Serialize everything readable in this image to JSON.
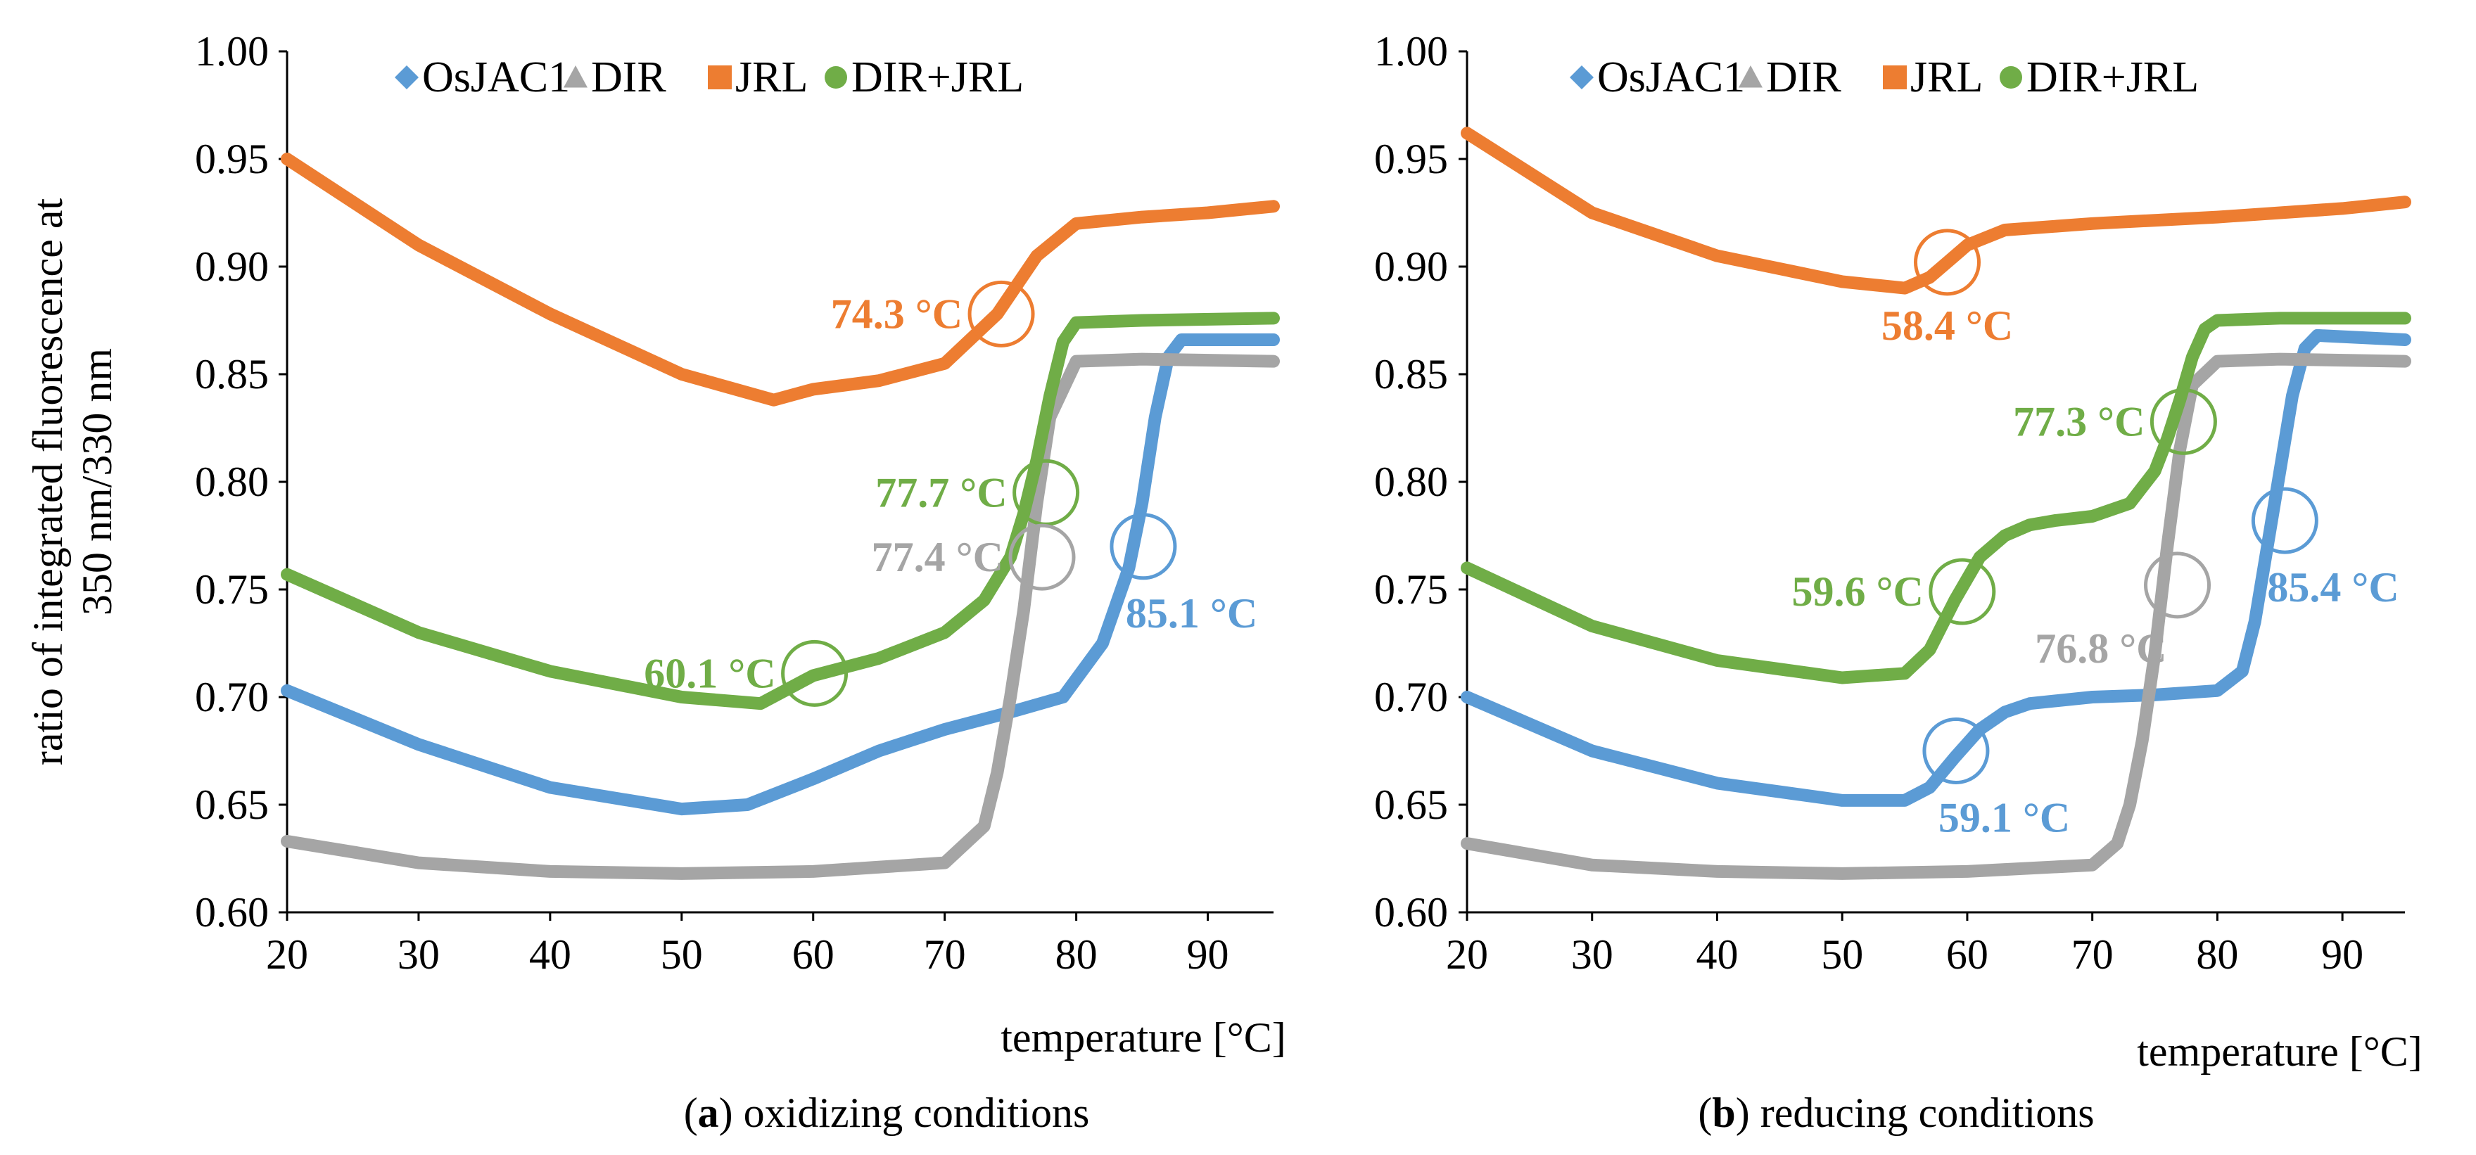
{
  "chart_data": [
    {
      "type": "line",
      "panel_letter": "a",
      "caption": "oxidizing conditions",
      "xlabel": "temperature [°C]",
      "ylabel_line1": "ratio of integrated fluorescence at",
      "ylabel_line2": "350 nm/330 nm",
      "xlim": [
        20,
        95
      ],
      "ylim": [
        0.6,
        1.0
      ],
      "x_ticks": [
        "20",
        "30",
        "40",
        "50",
        "60",
        "70",
        "80",
        "90"
      ],
      "y_ticks": [
        "0.60",
        "0.65",
        "0.70",
        "0.75",
        "0.80",
        "0.85",
        "0.90",
        "0.95",
        "1.00"
      ],
      "grid": false,
      "legend_position": "top",
      "series": [
        {
          "name": "OsJAC1",
          "color": "#5B9BD5",
          "marker": "diamond",
          "x": [
            20,
            30,
            40,
            50,
            55,
            60,
            65,
            70,
            75,
            79,
            82,
            84,
            85,
            86,
            87,
            88,
            95
          ],
          "values": [
            0.703,
            0.678,
            0.658,
            0.648,
            0.65,
            0.662,
            0.675,
            0.685,
            0.693,
            0.7,
            0.725,
            0.76,
            0.79,
            0.83,
            0.858,
            0.866,
            0.866
          ]
        },
        {
          "name": "DIR",
          "color": "#A5A5A5",
          "marker": "triangle",
          "x": [
            20,
            30,
            40,
            50,
            60,
            70,
            73,
            74,
            75,
            76,
            77,
            78,
            80,
            85,
            95
          ],
          "values": [
            0.633,
            0.623,
            0.619,
            0.618,
            0.619,
            0.623,
            0.64,
            0.665,
            0.7,
            0.74,
            0.79,
            0.83,
            0.856,
            0.857,
            0.856
          ]
        },
        {
          "name": "JRL",
          "color": "#ED7D31",
          "marker": "square",
          "x": [
            20,
            30,
            40,
            50,
            57,
            60,
            65,
            70,
            74,
            77,
            80,
            85,
            90,
            95
          ],
          "values": [
            0.95,
            0.91,
            0.878,
            0.85,
            0.838,
            0.843,
            0.847,
            0.855,
            0.878,
            0.905,
            0.92,
            0.923,
            0.925,
            0.928
          ]
        },
        {
          "name": "DIR+JRL",
          "color": "#70AD47",
          "marker": "circle",
          "x": [
            20,
            30,
            40,
            50,
            56,
            60,
            65,
            70,
            73,
            75,
            76,
            77,
            78,
            79,
            80,
            85,
            95
          ],
          "values": [
            0.757,
            0.73,
            0.712,
            0.7,
            0.697,
            0.71,
            0.718,
            0.73,
            0.745,
            0.765,
            0.785,
            0.81,
            0.84,
            0.865,
            0.874,
            0.875,
            0.876
          ]
        }
      ],
      "annotations": [
        {
          "label": "74.3 °C",
          "x": 74.3,
          "y": 0.878,
          "color": "#ED7D31",
          "text_side": "left"
        },
        {
          "label": "77.7 °C",
          "x": 77.7,
          "y": 0.795,
          "color": "#70AD47",
          "text_side": "left"
        },
        {
          "label": "77.4 °C",
          "x": 77.4,
          "y": 0.765,
          "color": "#A5A5A5",
          "text_side": "left"
        },
        {
          "label": "85.1 °C",
          "x": 85.1,
          "y": 0.77,
          "color": "#5B9BD5",
          "text_side": "below-right"
        },
        {
          "label": "60.1 °C",
          "x": 60.1,
          "y": 0.711,
          "color": "#70AD47",
          "text_side": "left"
        }
      ]
    },
    {
      "type": "line",
      "panel_letter": "b",
      "caption": "reducing conditions",
      "xlabel": "temperature [°C]",
      "xlim": [
        20,
        95
      ],
      "ylim": [
        0.6,
        1.0
      ],
      "x_ticks": [
        "20",
        "30",
        "40",
        "50",
        "60",
        "70",
        "80",
        "90"
      ],
      "y_ticks": [
        "0.60",
        "0.65",
        "0.70",
        "0.75",
        "0.80",
        "0.85",
        "0.90",
        "0.95",
        "1.00"
      ],
      "grid": false,
      "legend_position": "top",
      "series": [
        {
          "name": "OsJAC1",
          "color": "#5B9BD5",
          "marker": "diamond",
          "x": [
            20,
            30,
            40,
            50,
            55,
            57,
            59,
            61,
            63,
            65,
            70,
            75,
            80,
            82,
            83,
            84,
            85,
            86,
            87,
            88,
            95
          ],
          "values": [
            0.7,
            0.675,
            0.66,
            0.652,
            0.652,
            0.658,
            0.672,
            0.685,
            0.693,
            0.697,
            0.7,
            0.701,
            0.703,
            0.712,
            0.735,
            0.77,
            0.805,
            0.84,
            0.862,
            0.868,
            0.866
          ]
        },
        {
          "name": "DIR",
          "color": "#A5A5A5",
          "marker": "triangle",
          "x": [
            20,
            30,
            40,
            50,
            60,
            70,
            72,
            73,
            74,
            75,
            76,
            77,
            78,
            80,
            85,
            95
          ],
          "values": [
            0.632,
            0.622,
            0.619,
            0.618,
            0.619,
            0.622,
            0.632,
            0.65,
            0.68,
            0.72,
            0.77,
            0.815,
            0.845,
            0.856,
            0.857,
            0.856
          ]
        },
        {
          "name": "JRL",
          "color": "#ED7D31",
          "marker": "square",
          "x": [
            20,
            30,
            40,
            50,
            55,
            57,
            58.4,
            60,
            63,
            70,
            80,
            90,
            95
          ],
          "values": [
            0.962,
            0.925,
            0.905,
            0.893,
            0.89,
            0.895,
            0.902,
            0.91,
            0.917,
            0.92,
            0.923,
            0.927,
            0.93
          ]
        },
        {
          "name": "DIR+JRL",
          "color": "#70AD47",
          "marker": "circle",
          "x": [
            20,
            30,
            40,
            50,
            55,
            57,
            59,
            61,
            63,
            65,
            67,
            70,
            73,
            75,
            76,
            77,
            78,
            79,
            80,
            85,
            95
          ],
          "values": [
            0.76,
            0.733,
            0.717,
            0.709,
            0.711,
            0.722,
            0.745,
            0.765,
            0.775,
            0.78,
            0.782,
            0.784,
            0.79,
            0.805,
            0.82,
            0.838,
            0.858,
            0.871,
            0.875,
            0.876,
            0.876
          ]
        }
      ],
      "annotations": [
        {
          "label": "58.4 °C",
          "x": 58.4,
          "y": 0.902,
          "color": "#ED7D31",
          "text_side": "below"
        },
        {
          "label": "77.3 °C",
          "x": 77.3,
          "y": 0.828,
          "color": "#70AD47",
          "text_side": "left"
        },
        {
          "label": "59.6 °C",
          "x": 59.6,
          "y": 0.749,
          "color": "#70AD47",
          "text_side": "left"
        },
        {
          "label": "76.8 °C",
          "x": 76.8,
          "y": 0.752,
          "color": "#A5A5A5",
          "text_side": "below-left"
        },
        {
          "label": "85.4 °C",
          "x": 85.4,
          "y": 0.782,
          "color": "#5B9BD5",
          "text_side": "below-right"
        },
        {
          "label": "59.1 °C",
          "x": 59.1,
          "y": 0.675,
          "color": "#5B9BD5",
          "text_side": "below-right"
        }
      ]
    }
  ]
}
